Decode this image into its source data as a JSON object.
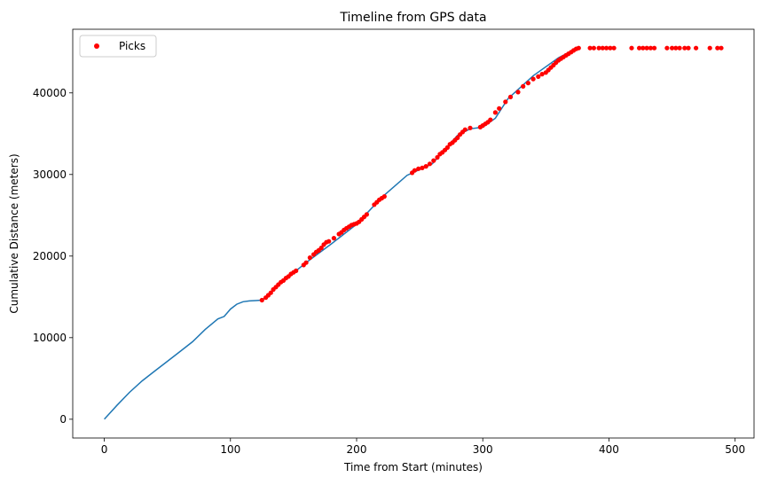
{
  "chart_data": {
    "type": "line",
    "title": "Timeline from GPS data",
    "xlabel": "Time from Start (minutes)",
    "ylabel": "Cumulative Distance (meters)",
    "xlim": [
      -25,
      515
    ],
    "ylim": [
      -2300,
      47800
    ],
    "xticks": [
      0,
      100,
      200,
      300,
      400,
      500
    ],
    "yticks": [
      0,
      10000,
      20000,
      30000,
      40000
    ],
    "grid": false,
    "legend_position": "top-left",
    "line_color": "#1f77b4",
    "picks_color": "#ff0000",
    "track": {
      "x": [
        0,
        10,
        20,
        30,
        40,
        50,
        60,
        70,
        80,
        90,
        95,
        100,
        105,
        110,
        115,
        120,
        125,
        140,
        160,
        180,
        200,
        220,
        240,
        260,
        280,
        290,
        300,
        310,
        320,
        340,
        360,
        375
      ],
      "y": [
        0,
        1700,
        3300,
        4700,
        5900,
        7100,
        8300,
        9500,
        11000,
        12300,
        12600,
        13500,
        14100,
        14400,
        14500,
        14550,
        14600,
        16700,
        19200,
        21500,
        23900,
        27200,
        29900,
        31300,
        34800,
        35600,
        35800,
        36900,
        39300,
        42100,
        44300,
        45500
      ]
    },
    "series": [
      {
        "name": "Picks",
        "x": [
          125,
          128,
          130,
          132,
          134,
          136,
          138,
          140,
          142,
          144,
          146,
          148,
          150,
          152,
          158,
          160,
          163,
          166,
          168,
          170,
          172,
          174,
          176,
          178,
          182,
          186,
          188,
          190,
          192,
          194,
          196,
          198,
          200,
          202,
          204,
          206,
          208,
          214,
          216,
          218,
          220,
          222,
          244,
          246,
          249,
          252,
          255,
          258,
          261,
          264,
          266,
          268,
          270,
          272,
          274,
          276,
          278,
          280,
          282,
          284,
          286,
          290,
          298,
          300,
          302,
          304,
          306,
          310,
          313,
          318,
          322,
          328,
          332,
          336,
          340,
          344,
          347,
          350,
          352,
          354,
          356,
          358,
          360,
          362,
          364,
          366,
          368,
          370,
          372,
          374,
          376,
          385,
          388,
          392,
          395,
          398,
          401,
          404,
          418,
          424,
          427,
          430,
          433,
          436,
          446,
          450,
          453,
          456,
          460,
          463,
          469,
          480,
          486,
          489
        ],
        "y": [
          14600,
          14900,
          15200,
          15500,
          15900,
          16200,
          16500,
          16800,
          17000,
          17300,
          17500,
          17800,
          18000,
          18200,
          18900,
          19200,
          19800,
          20200,
          20500,
          20700,
          21000,
          21400,
          21700,
          21800,
          22200,
          22700,
          22900,
          23200,
          23400,
          23600,
          23800,
          23900,
          24000,
          24200,
          24500,
          24800,
          25100,
          26300,
          26600,
          26900,
          27100,
          27300,
          30200,
          30500,
          30700,
          30800,
          31000,
          31300,
          31700,
          32100,
          32500,
          32700,
          33000,
          33300,
          33700,
          33900,
          34200,
          34500,
          34900,
          35200,
          35500,
          35700,
          35800,
          36000,
          36200,
          36400,
          36700,
          37600,
          38100,
          38900,
          39500,
          40100,
          40800,
          41200,
          41700,
          42000,
          42300,
          42500,
          42800,
          43100,
          43400,
          43700,
          44000,
          44200,
          44400,
          44600,
          44800,
          45000,
          45200,
          45400,
          45500,
          45500,
          45500,
          45500,
          45500,
          45500,
          45500,
          45500,
          45500,
          45500,
          45500,
          45500,
          45500,
          45500,
          45500,
          45500,
          45500,
          45500,
          45500,
          45500,
          45500,
          45500,
          45500,
          45500
        ]
      }
    ]
  }
}
